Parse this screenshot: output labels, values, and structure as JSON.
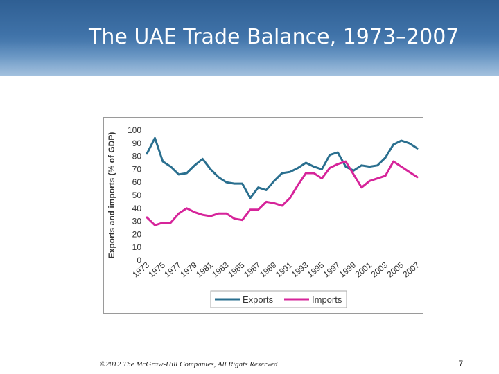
{
  "slide": {
    "title": "The UAE Trade Balance, 1973–2007",
    "copyright": "©2012 The McGraw-Hill Companies, All Rights Reserved",
    "page_number": "7"
  },
  "colors": {
    "banner": "#3f72a8",
    "exports": "#2a6f8f",
    "imports": "#d6249a"
  },
  "chart_data": {
    "type": "line",
    "title": "",
    "xlabel": "",
    "ylabel": "Exports and imports (% of GDP)",
    "ylim": [
      0,
      100
    ],
    "yticks": [
      0,
      10,
      20,
      30,
      40,
      50,
      60,
      70,
      80,
      90,
      100
    ],
    "xticks": [
      "1973",
      "1975",
      "1977",
      "1979",
      "1981",
      "1983",
      "1985",
      "1987",
      "1989",
      "1991",
      "1993",
      "1995",
      "1997",
      "1999",
      "2001",
      "2003",
      "2005",
      "2007"
    ],
    "x": [
      1973,
      1974,
      1975,
      1976,
      1977,
      1978,
      1979,
      1980,
      1981,
      1982,
      1983,
      1984,
      1985,
      1986,
      1987,
      1988,
      1989,
      1990,
      1991,
      1992,
      1993,
      1994,
      1995,
      1996,
      1997,
      1998,
      1999,
      2000,
      2001,
      2002,
      2003,
      2004,
      2005,
      2006,
      2007
    ],
    "series": [
      {
        "name": "Exports",
        "color": "#2a6f8f",
        "values": [
          82,
          94,
          76,
          72,
          66,
          67,
          73,
          78,
          70,
          64,
          60,
          59,
          59,
          48,
          56,
          54,
          61,
          67,
          68,
          71,
          75,
          72,
          70,
          81,
          83,
          72,
          69,
          73,
          72,
          73,
          79,
          89,
          92,
          90,
          86
        ]
      },
      {
        "name": "Imports",
        "color": "#d6249a",
        "values": [
          33,
          27,
          29,
          29,
          36,
          40,
          37,
          35,
          34,
          36,
          36,
          32,
          31,
          39,
          39,
          45,
          44,
          42,
          48,
          58,
          67,
          67,
          63,
          71,
          74,
          76,
          66,
          56,
          61,
          63,
          65,
          76,
          72,
          68,
          64
        ]
      }
    ],
    "legend": {
      "position": "bottom",
      "entries": [
        "Exports",
        "Imports"
      ]
    },
    "grid": false
  }
}
